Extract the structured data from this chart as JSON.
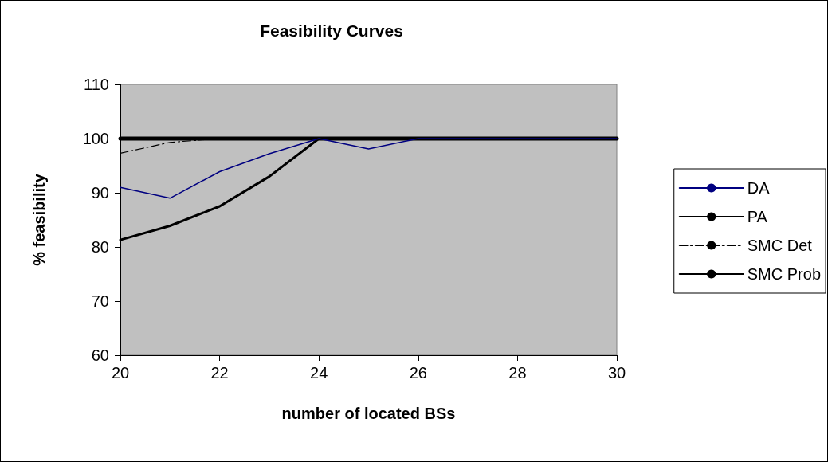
{
  "chart_data": {
    "type": "line",
    "title": "Feasibility Curves",
    "xlabel": "number of located BSs",
    "ylabel": "% feasibility",
    "x": [
      20,
      21,
      22,
      23,
      24,
      25,
      26,
      27,
      28,
      29,
      30
    ],
    "series": [
      {
        "name": "DA",
        "color": "#000080",
        "line_style": "solid",
        "values": [
          91,
          89,
          93.9,
          97.2,
          100,
          98.1,
          100,
          100,
          100,
          100,
          100
        ]
      },
      {
        "name": "PA",
        "color": "#000000",
        "line_style": "solid",
        "values": [
          81.3,
          83.9,
          87.5,
          93,
          100,
          100,
          100,
          100,
          100,
          100,
          100
        ]
      },
      {
        "name": "SMC Det",
        "color": "#000000",
        "line_style": "dashdot",
        "values": [
          97.3,
          99.3,
          100,
          100,
          100,
          100,
          100,
          100,
          100,
          100,
          100
        ]
      },
      {
        "name": "SMC Prob",
        "color": "#000000",
        "line_style": "solid",
        "values": [
          100,
          100,
          100,
          100,
          100,
          100,
          100,
          100,
          100,
          100,
          100
        ]
      }
    ],
    "xlim": [
      20,
      30
    ],
    "xticks": [
      20,
      22,
      24,
      26,
      28,
      30
    ],
    "ylim": [
      60,
      110
    ],
    "yticks": [
      60,
      70,
      80,
      90,
      100,
      110
    ],
    "grid": false,
    "legend": "right",
    "marker": "none"
  }
}
